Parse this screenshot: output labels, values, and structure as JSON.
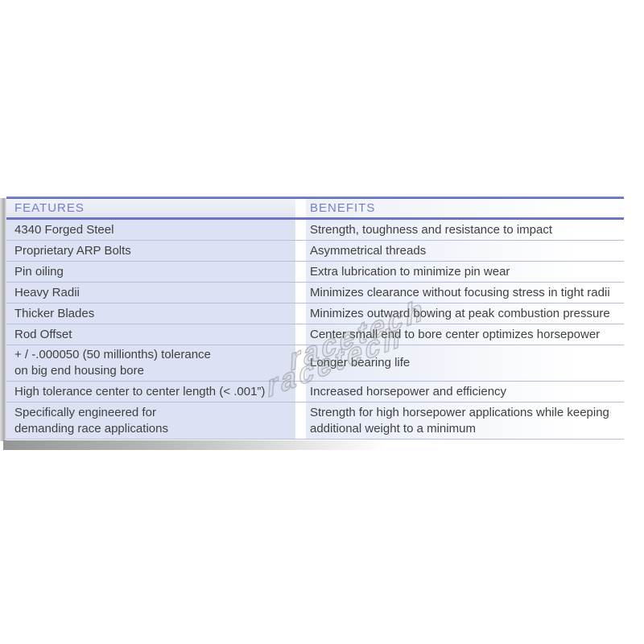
{
  "table": {
    "header": {
      "features_label": "FEATURES",
      "benefits_label": "BENEFITS"
    },
    "rows": [
      {
        "feature": "4340 Forged Steel",
        "benefit": "Strength, toughness and resistance to impact"
      },
      {
        "feature": "Proprietary ARP Bolts",
        "benefit": "Asymmetrical threads"
      },
      {
        "feature": "Pin oiling",
        "benefit": "Extra lubrication to minimize pin wear"
      },
      {
        "feature": "Heavy Radii",
        "benefit": "Minimizes clearance without focusing stress in tight radii"
      },
      {
        "feature": "Thicker Blades",
        "benefit": "Minimizes outward bowing at peak combustion pressure"
      },
      {
        "feature": "Rod Offset",
        "benefit": "Center small end to bore center optimizes horsepower"
      },
      {
        "feature": "+ / -.000050 (50 millionths) tolerance\non big end housing bore",
        "benefit": "Longer bearing life"
      },
      {
        "feature": "High tolerance center to center length (< .001”)",
        "benefit": "Increased horsepower and efficiency"
      },
      {
        "feature": "Specifically engineered for\ndemanding race applications",
        "benefit": "Strength for high horsepower applications while keeping\nadditional weight to a minimum"
      }
    ]
  },
  "watermark": {
    "text": "racetech"
  },
  "colors": {
    "accent_rule": "#5560b5",
    "header_rule": "#6a75c6",
    "header_text": "#747fc9",
    "row_bg": "#dce2f3",
    "row_line": "#b6bedd",
    "body_text": "#3f3f3f",
    "watermark_gray": "#8f8f8f"
  }
}
